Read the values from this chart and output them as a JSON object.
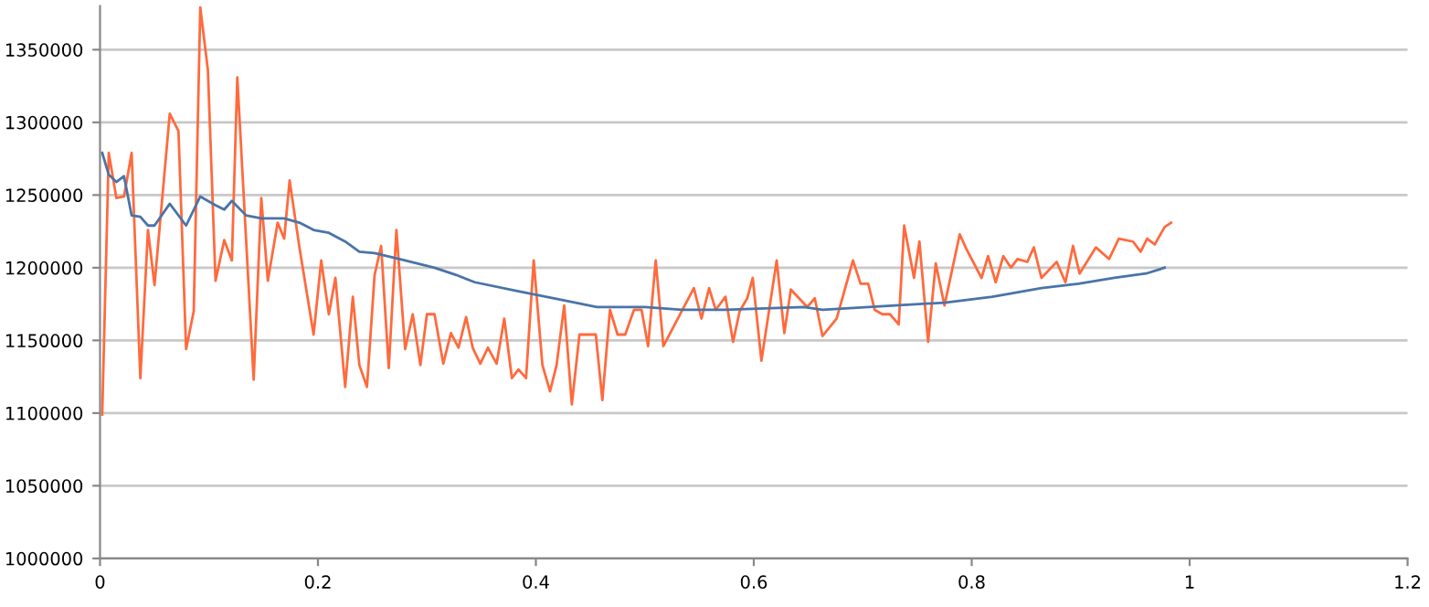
{
  "chart_data": {
    "type": "line",
    "series": [
      {
        "color": "#ff6a3d",
        "x": [
          0.002,
          0.008,
          0.015,
          0.022,
          0.029,
          0.037,
          0.044,
          0.05,
          0.064,
          0.072,
          0.079,
          0.086,
          0.092,
          0.099,
          0.106,
          0.114,
          0.121,
          0.126,
          0.141,
          0.148,
          0.154,
          0.163,
          0.169,
          0.174,
          0.183,
          0.196,
          0.203,
          0.21,
          0.216,
          0.225,
          0.232,
          0.238,
          0.245,
          0.252,
          0.258,
          0.265,
          0.272,
          0.28,
          0.287,
          0.294,
          0.3,
          0.307,
          0.315,
          0.322,
          0.329,
          0.336,
          0.342,
          0.349,
          0.356,
          0.364,
          0.371,
          0.378,
          0.384,
          0.391,
          0.398,
          0.406,
          0.413,
          0.419,
          0.426,
          0.433,
          0.44,
          0.455,
          0.461,
          0.468,
          0.475,
          0.482,
          0.49,
          0.497,
          0.503,
          0.51,
          0.517,
          0.545,
          0.552,
          0.559,
          0.565,
          0.574,
          0.581,
          0.587,
          0.594,
          0.599,
          0.607,
          0.621,
          0.628,
          0.634,
          0.649,
          0.656,
          0.663,
          0.676,
          0.691,
          0.698,
          0.705,
          0.711,
          0.718,
          0.725,
          0.733,
          0.738,
          0.747,
          0.752,
          0.76,
          0.767,
          0.775,
          0.789,
          0.795,
          0.809,
          0.815,
          0.822,
          0.829,
          0.836,
          0.842,
          0.851,
          0.857,
          0.864,
          0.878,
          0.886,
          0.893,
          0.899,
          0.914,
          0.926,
          0.935,
          0.948,
          0.955,
          0.961,
          0.968,
          0.977,
          0.983
        ],
        "values": [
          1099000,
          1279000,
          1248000,
          1249000,
          1279000,
          1124000,
          1226000,
          1188000,
          1306000,
          1294000,
          1144000,
          1170000,
          1379000,
          1336000,
          1191000,
          1219000,
          1205000,
          1331000,
          1123000,
          1248000,
          1191000,
          1231000,
          1220000,
          1260000,
          1214000,
          1154000,
          1205000,
          1168000,
          1193000,
          1118000,
          1180000,
          1133000,
          1118000,
          1195000,
          1215000,
          1131000,
          1226000,
          1144000,
          1168000,
          1133000,
          1168000,
          1168000,
          1134000,
          1155000,
          1145000,
          1166000,
          1145000,
          1134000,
          1145000,
          1134000,
          1165000,
          1124000,
          1130000,
          1124000,
          1205000,
          1133000,
          1115000,
          1133000,
          1174000,
          1106000,
          1154000,
          1154000,
          1109000,
          1171000,
          1154000,
          1154000,
          1171000,
          1171000,
          1146000,
          1205000,
          1146000,
          1186000,
          1165000,
          1186000,
          1171000,
          1180000,
          1149000,
          1170000,
          1179000,
          1193000,
          1136000,
          1205000,
          1155000,
          1185000,
          1173000,
          1179000,
          1153000,
          1165000,
          1205000,
          1189000,
          1189000,
          1171000,
          1168000,
          1168000,
          1161000,
          1229000,
          1193000,
          1218000,
          1149000,
          1203000,
          1174000,
          1223000,
          1213000,
          1193000,
          1208000,
          1190000,
          1208000,
          1200000,
          1206000,
          1204000,
          1214000,
          1193000,
          1204000,
          1190000,
          1215000,
          1196000,
          1214000,
          1206000,
          1220000,
          1218000,
          1211000,
          1220000,
          1216000,
          1228000,
          1231000
        ]
      },
      {
        "color": "#4a74a8",
        "x": [
          0.002,
          0.008,
          0.015,
          0.022,
          0.029,
          0.037,
          0.044,
          0.05,
          0.064,
          0.079,
          0.092,
          0.106,
          0.114,
          0.121,
          0.134,
          0.148,
          0.169,
          0.183,
          0.196,
          0.21,
          0.225,
          0.238,
          0.252,
          0.28,
          0.307,
          0.327,
          0.344,
          0.383,
          0.423,
          0.456,
          0.5,
          0.534,
          0.574,
          0.646,
          0.663,
          0.73,
          0.775,
          0.819,
          0.864,
          0.898,
          0.931,
          0.96,
          0.977
        ],
        "values": [
          1279000,
          1264000,
          1259000,
          1263000,
          1236000,
          1235000,
          1229000,
          1229000,
          1244000,
          1229000,
          1249000,
          1243000,
          1240000,
          1246000,
          1236000,
          1234000,
          1234000,
          1231000,
          1226000,
          1224000,
          1218000,
          1211000,
          1210000,
          1205000,
          1200000,
          1195000,
          1190000,
          1184000,
          1178000,
          1173000,
          1173000,
          1171000,
          1171000,
          1173000,
          1171000,
          1174000,
          1176000,
          1180000,
          1186000,
          1189000,
          1193000,
          1196000,
          1200000
        ]
      }
    ],
    "xlim": [
      0,
      1.2
    ],
    "xticks": [
      0,
      0.2,
      0.4,
      0.6,
      0.8,
      1,
      1.2
    ],
    "ylim": [
      1000000,
      1380000
    ],
    "yticks": [
      1000000,
      1050000,
      1100000,
      1150000,
      1200000,
      1250000,
      1300000,
      1350000
    ],
    "grid": "y",
    "marker": "none",
    "line_style": "solid",
    "legend": false
  }
}
